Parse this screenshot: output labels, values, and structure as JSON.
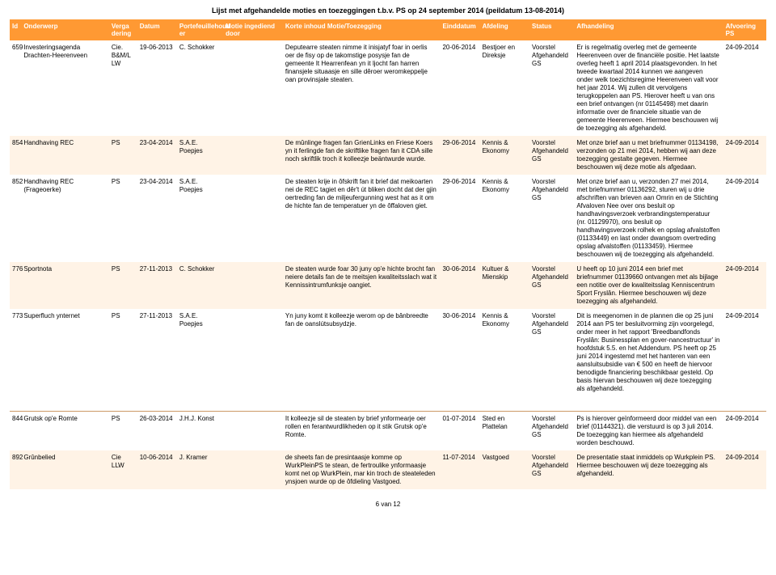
{
  "page_title": "Lijst met afgehandelde moties en toezeggingen t.b.v. PS op 24 september 2014 (peildatum 13-08-2014)",
  "footer": "6 van 12",
  "columns": [
    "Id",
    "Onderwerp",
    "Verga dering",
    "Datum",
    "Portefeuillehoud er",
    "Motie ingediend door",
    "Korte inhoud Motie/Toezegging",
    "Einddatum",
    "Afdeling",
    "Status",
    "Afhandeling",
    "Afvoering PS"
  ],
  "rows": [
    {
      "id": "659",
      "onderwerp": "Investeringsagenda Drachten-Heerenveen",
      "vergadering": "Cie. B&M/L LW",
      "datum": "19-06-2013",
      "portefeuille": "C. Schokker",
      "motie": "",
      "korte": "Deputearre steaten nimme it inisjatyf foar in oerlis oer de fisy op de takomstige posysje fan de gemeente It Hearrenfean yn it ljocht fan harren finansjele situaasje en sille dêroer weromkeppelje oan provinsjale steaten.",
      "einddatum": "20-06-2014",
      "afdeling": "Bestjoer en Direksje",
      "status": "Voorstel Afgehandeld GS",
      "afhandeling": "Er is regelmatig overleg met de gemeente Heerenveen over de financiële positie. Het laatste overleg heeft 1 april 2014 plaatsgevonden. In het tweede kwartaal 2014 kunnen we aangeven onder welk toezichtsregime Heerenveen valt voor het jaar 2014. Wij zullen dit vervolgens terugkoppelen aan PS. Hierover heeft u van ons een brief ontvangen (nr 01145498) met daarin informatie over de financiele situatie van de gemeente Heerenveen. Hiermee beschouwen wij de toezegging als afgehandeld.",
      "afvoering": "24-09-2014"
    },
    {
      "id": "854",
      "onderwerp": "Handhaving REC",
      "vergadering": "PS",
      "datum": "23-04-2014",
      "portefeuille": "S.A.E. Poepjes",
      "motie": "",
      "korte": "De mûnlinge fragen fan GrienLinks en Friese Koers yn it ferlingde fan de skriftlike fragen fan it CDA sille noch skriftlik troch it kolleezje beäntwurde wurde.",
      "einddatum": "29-06-2014",
      "afdeling": "Kennis & Ekonomy",
      "status": "Voorstel Afgehandeld GS",
      "afhandeling": "Met onze brief aan u met briefnummer 01134198, verzonden op 21 mei 2014, hebben wij aan deze toezegging gestalte gegeven. Hiermee beschouwen wij deze motie als afgedaan.",
      "afvoering": "24-09-2014"
    },
    {
      "id": "852",
      "onderwerp": "Handhaving REC (Frageoerke)",
      "vergadering": "PS",
      "datum": "23-04-2014",
      "portefeuille": "S.A.E. Poepjes",
      "motie": "",
      "korte": "De steaten krije in ôfskrift fan it brief dat meikoarten nei de REC tagiet en dêr't út bliken docht dat der gjin oertreding fan de miljeufergunning west hat as it om de hichte fan de temperatuer yn de ôffaloven giet.",
      "einddatum": "29-06-2014",
      "afdeling": "Kennis & Ekonomy",
      "status": "Voorstel Afgehandeld GS",
      "afhandeling": "Met onze brief aan u, verzonden 27 mei 2014, met briefnummer 01136292, sturen wij u drie afschriften van brieven aan Omrin en de Stichting Afvaloven Nee over ons besluit op handhavingsverzoek verbrandingstemperatuur (nr. 01129970), ons besluit op handhavingsverzoek rolhek en opslag afvalstoffen (01133449) en last onder dwangsom overtreding opslag afvalstoffen (01133459). Hiermee beschouwen wij de toezegging als afgehandeld.",
      "afvoering": "24-09-2014"
    },
    {
      "id": "776",
      "onderwerp": "Sportnota",
      "vergadering": "PS",
      "datum": "27-11-2013",
      "portefeuille": "C. Schokker",
      "motie": "",
      "korte": "De steaten wurde foar 30 juny op'e hichte brocht fan neiere details fan de te meitsjen kwaliteitsslach wat it Kennissintrumfunksje oangiet.",
      "einddatum": "30-06-2014",
      "afdeling": "Kultuer & Mienskip",
      "status": "Voorstel Afgehandeld GS",
      "afhandeling": "U heeft op 10 juni 2014 een brief met briefnummer 01139660 ontvangen met als bijlage een notitie over de kwaliteitsslag Kenniscentrum Sport Fryslân. Hiermee beschouwen wij deze toezegging als afgehandeld.",
      "afvoering": "24-09-2014"
    },
    {
      "id": "773",
      "onderwerp": "Superfluch ynternet",
      "vergadering": "PS",
      "datum": "27-11-2013",
      "portefeuille": "S.A.E. Poepjes",
      "motie": "",
      "korte": "Yn juny komt it kolleezje werom op de bânbreedte fan de oanslútsubsydzje.",
      "einddatum": "30-06-2014",
      "afdeling": "Kennis & Ekonomy",
      "status": "Voorstel Afgehandeld GS",
      "afhandeling": "Dit is meegenomen in de plannen die op 25 juni 2014 aan PS ter besluitvorming zijn voorgelegd, onder meer in het rapport 'Breedbandfonds Fryslân: Businessplan en gover-nancestructuur' in hoofdstuk 5.5. en het Addendum. PS heeft op 25 juni 2014 ingestemd met het hanteren van een aansluitsubsidie van € 500 en heeft de hiervoor benodigde financiering beschikbaar gesteld. Op basis hiervan beschouwen wij deze toezegging als afgehandeld.",
      "afvoering": "24-09-2014"
    },
    {
      "id": "844",
      "onderwerp": "Grutsk op'e Romte",
      "vergadering": "PS",
      "datum": "26-03-2014",
      "portefeuille": "J.H.J. Konst",
      "motie": "",
      "korte": "It kolleezje sil de steaten by brief ynformearje oer rollen en ferantwurdlikheden op it stik Grutsk op'e Romte.",
      "einddatum": "01-07-2014",
      "afdeling": "Sted en Plattelan",
      "status": "Voorstel Afgehandeld GS",
      "afhandeling": "Ps is hierover geïnformeerd door middel van een brief (01144321). die verstuurd is op 3 juli 2014. De toezegging kan hiermee als afgehandeld worden beschouwd.",
      "afvoering": "24-09-2014"
    },
    {
      "id": "892",
      "onderwerp": "Grûnbelied",
      "vergadering": "Cie LLW",
      "datum": "10-06-2014",
      "portefeuille": "J. Kramer",
      "motie": "",
      "korte": "de sheets fan de presintaasje komme op WurkPleinPS te stean, de fertroulike ynformaasje komt net op WurkPlein, mar kin troch de steateleden ynsjoen wurde op de ôfdieling Vastgoed.",
      "einddatum": "11-07-2014",
      "afdeling": "Vastgoed",
      "status": "Voorstel Afgehandeld GS",
      "afhandeling": "De presentatie staat inmiddels op Wurkplein PS. Hiermee beschouwen wij deze toezegging als afgehandeld.",
      "afvoering": "24-09-2014"
    }
  ],
  "colors": {
    "header_bg": "#ff9933",
    "header_fg": "#ffffff",
    "stripe_bg": "#fff3e6",
    "divider": "#cc9966",
    "page_bg": "#ffffff",
    "text": "#000000"
  },
  "type": "table"
}
